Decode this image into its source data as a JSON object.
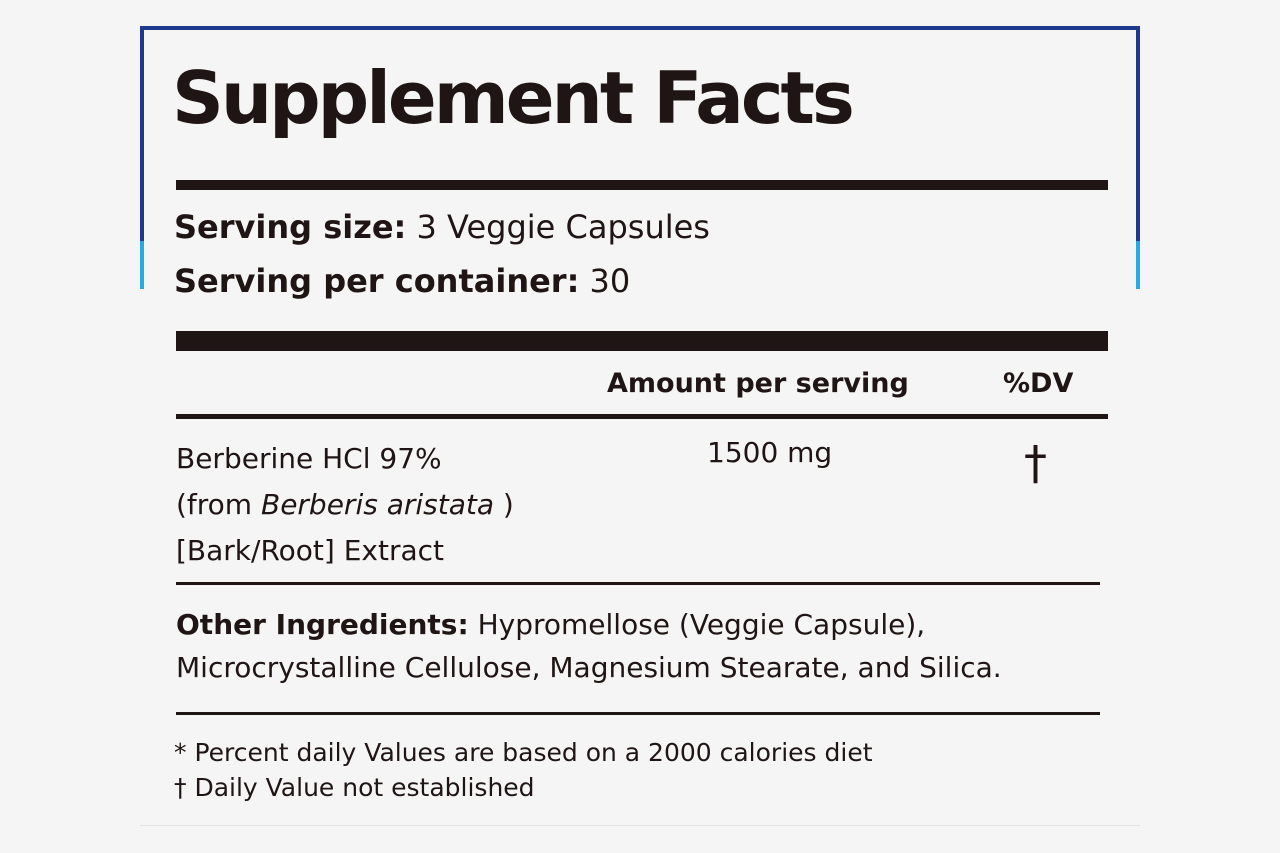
{
  "panel": {
    "title": "Supplement Facts",
    "serving_size_label": "Serving size:",
    "serving_size_value": "3 Veggie Capsules",
    "servings_per_container_label": "Serving per container:",
    "servings_per_container_value": "30"
  },
  "table": {
    "columns": [
      "Amount per serving",
      "%DV"
    ],
    "rows": [
      {
        "name_prefix": "Berberine HCl 97%",
        "name_from_open": "(from ",
        "name_species": "Berberis aristata",
        "name_from_close": " )",
        "name_suffix": "[Bark/Root] Extract",
        "amount": "1500 mg",
        "dv": "†"
      }
    ]
  },
  "other_ingredients": {
    "label": "Other Ingredients:",
    "line1": "Hypromellose (Veggie Capsule),",
    "line2": "Microcrystalline Cellulose, Magnesium Stearate, and Silica."
  },
  "footnotes": [
    "* Percent daily Values are based on a 2000 calories diet",
    "† Daily Value not established"
  ],
  "colors": {
    "text": "#1f1514",
    "frame_dark_blue": "#1d3a8c",
    "frame_light_blue": "#27a9e1",
    "background": "#f5f5f5"
  }
}
